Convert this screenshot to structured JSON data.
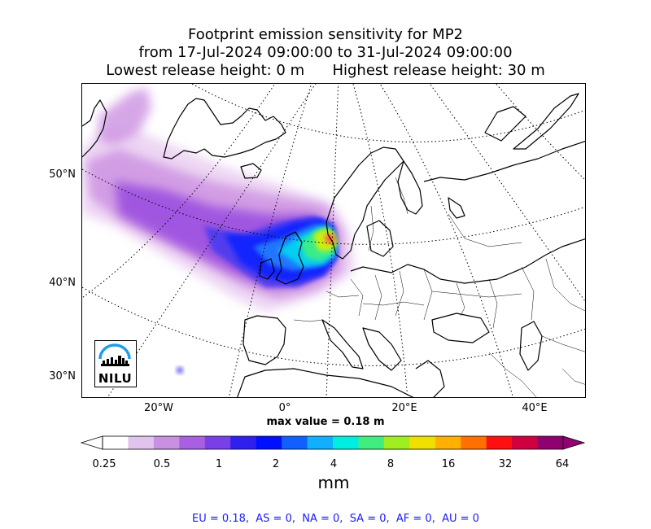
{
  "title": {
    "line1": "Footprint emission sensitivity for MP2",
    "line2": "from 17-Jul-2024 09:00:00 to 31-Jul-2024 09:00:00",
    "line3": "Lowest release height: 0 m      Highest release height: 30 m"
  },
  "map": {
    "lat_labels": [
      "50°N",
      "40°N",
      "30°N"
    ],
    "lon_labels": [
      "20°W",
      "0°",
      "20°E",
      "40°E"
    ],
    "plume_colors": [
      "#e8c9f0",
      "#c98ae0",
      "#9b4fe0",
      "#4a3af0",
      "#1020ff",
      "#2080ff",
      "#00d8f0",
      "#40f080",
      "#e0f000",
      "#ff5050"
    ]
  },
  "max_value_text": "max value = 0.18 m",
  "colorbar": {
    "ticks": [
      "0.25",
      "0.5",
      "1",
      "2",
      "4",
      "8",
      "16",
      "32",
      "64"
    ],
    "colors": [
      "#ffffff",
      "#e0c4ee",
      "#c890e0",
      "#a860e0",
      "#7a40e8",
      "#3020f0",
      "#0010ff",
      "#1060ff",
      "#10b0ff",
      "#00eee0",
      "#40ee80",
      "#a0ee20",
      "#f0e000",
      "#ffb000",
      "#ff7000",
      "#ff1010",
      "#d00040",
      "#900070"
    ],
    "unit": "mm"
  },
  "logo": {
    "text": "NILU"
  },
  "regions_text": "EU = 0.18,  AS = 0,  NA = 0,  SA = 0,  AF = 0,  AU = 0"
}
